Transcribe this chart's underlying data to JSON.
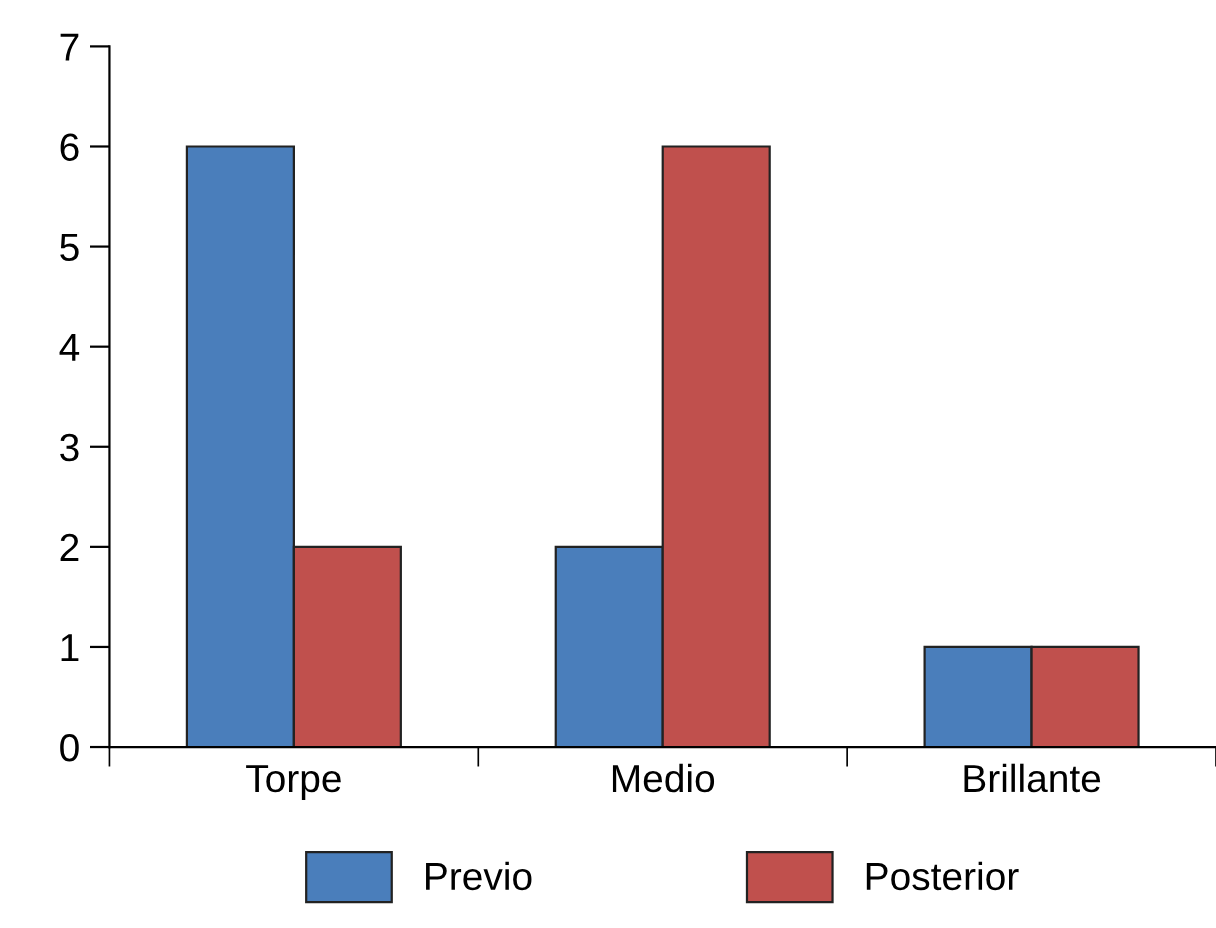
{
  "chart_data": {
    "type": "bar",
    "categories": [
      "Torpe",
      "Medio",
      "Brillante"
    ],
    "series": [
      {
        "name": "Previo",
        "color": "#4a7ebb",
        "values": [
          6,
          2,
          1
        ]
      },
      {
        "name": "Posterior",
        "color": "#c0504d",
        "values": [
          2,
          6,
          1
        ]
      }
    ],
    "ylim": [
      0,
      7
    ],
    "yticks": [
      0,
      1,
      2,
      3,
      4,
      5,
      6,
      7
    ],
    "grid": false,
    "legend": "bottom"
  }
}
